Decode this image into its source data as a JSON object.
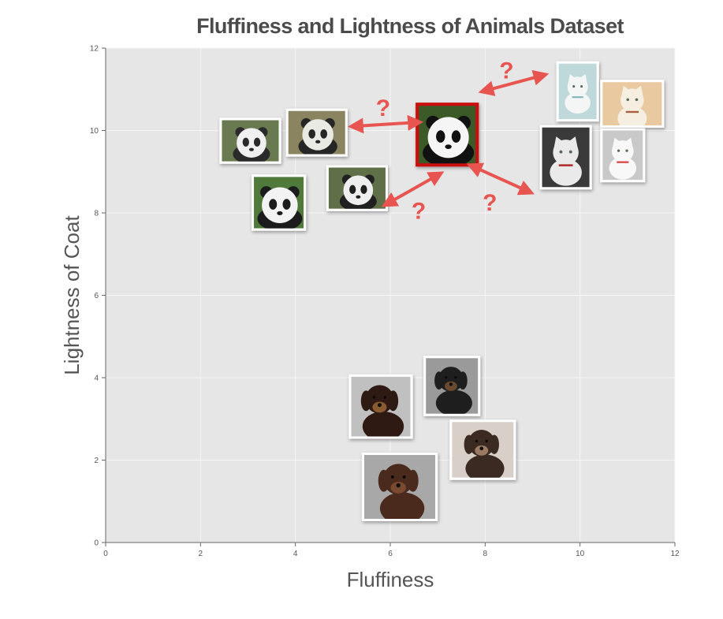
{
  "chart_data": {
    "type": "scatter",
    "title": "Fluffiness and Lightness of Animals Dataset",
    "xlabel": "Fluffiness",
    "ylabel": "Lightness of Coat",
    "xlim": [
      0,
      12
    ],
    "ylim": [
      0,
      12
    ],
    "xticks": [
      "0",
      "2",
      "4",
      "6",
      "8",
      "10",
      "12"
    ],
    "yticks": [
      "0",
      "2",
      "4",
      "6",
      "8",
      "10",
      "12"
    ],
    "grid": true,
    "background": "#e6e6e6",
    "grid_color": "#f6f6f6",
    "annotation_color": "#e85550",
    "highlight_color": "#cc1111",
    "annotation_text": "?",
    "points": [
      {
        "group": "panda",
        "icon": "panda-photo-icon",
        "x": 3.05,
        "y": 9.75,
        "w": 1.2,
        "h": 1.0,
        "colors": [
          "#2a2a2a",
          "#f0f0f0",
          "#6a7a50"
        ]
      },
      {
        "group": "panda",
        "icon": "panda-photo-icon",
        "x": 4.45,
        "y": 9.95,
        "w": 1.2,
        "h": 1.05,
        "colors": [
          "#262626",
          "#eaeae4",
          "#8a8460"
        ]
      },
      {
        "group": "panda",
        "icon": "panda-photo-icon",
        "x": 3.65,
        "y": 8.25,
        "w": 1.05,
        "h": 1.25,
        "colors": [
          "#1c1c1c",
          "#f3f3f3",
          "#4f7a3c"
        ]
      },
      {
        "group": "panda",
        "icon": "panda-photo-icon",
        "x": 5.3,
        "y": 8.6,
        "w": 1.2,
        "h": 1.0,
        "colors": [
          "#202020",
          "#eeeeee",
          "#5f7048"
        ]
      },
      {
        "group": "panda",
        "icon": "panda-photo-icon",
        "x": 7.2,
        "y": 9.9,
        "w": 1.2,
        "h": 1.4,
        "colors": [
          "#111111",
          "#f5f5f5",
          "#3c5a28"
        ],
        "highlight": true
      },
      {
        "group": "cat",
        "icon": "cat-photo-icon",
        "x": 9.95,
        "y": 10.95,
        "w": 0.8,
        "h": 1.35,
        "colors": [
          "#f4f6f6",
          "#bfd8da",
          "#7fb5b8"
        ]
      },
      {
        "group": "cat",
        "icon": "cat-photo-icon",
        "x": 11.1,
        "y": 10.65,
        "w": 1.25,
        "h": 1.05,
        "colors": [
          "#f6eee0",
          "#e8c9a0",
          "#a8603a"
        ]
      },
      {
        "group": "cat",
        "icon": "cat-photo-icon",
        "x": 9.7,
        "y": 9.35,
        "w": 1.0,
        "h": 1.45,
        "colors": [
          "#eaeaea",
          "#3a3a3a",
          "#b03030"
        ]
      },
      {
        "group": "cat",
        "icon": "cat-photo-icon",
        "x": 10.9,
        "y": 9.4,
        "w": 0.85,
        "h": 1.2,
        "colors": [
          "#f8f8f8",
          "#c9c9c9",
          "#d94040"
        ]
      },
      {
        "group": "dog",
        "icon": "dog-photo-icon",
        "x": 5.8,
        "y": 3.3,
        "w": 1.25,
        "h": 1.45,
        "colors": [
          "#2e1a12",
          "#8a5a30",
          "#c0c0c0"
        ]
      },
      {
        "group": "dog",
        "icon": "dog-photo-icon",
        "x": 7.3,
        "y": 3.8,
        "w": 1.1,
        "h": 1.35,
        "colors": [
          "#1e1e1e",
          "#6a4a2e",
          "#9a9a9a"
        ]
      },
      {
        "group": "dog",
        "icon": "dog-photo-icon",
        "x": 7.95,
        "y": 2.25,
        "w": 1.3,
        "h": 1.35,
        "colors": [
          "#3a2a22",
          "#9a7a60",
          "#d8cfc8"
        ]
      },
      {
        "group": "dog",
        "icon": "dog-photo-icon",
        "x": 6.2,
        "y": 1.35,
        "w": 1.5,
        "h": 1.55,
        "colors": [
          "#4a2a1c",
          "#7a4a30",
          "#a8a8a8"
        ]
      }
    ],
    "annotations": [
      {
        "from": [
          5.2,
          10.1
        ],
        "to": [
          6.6,
          10.2
        ],
        "label_at": [
          5.85,
          10.55
        ]
      },
      {
        "from": [
          5.9,
          8.2
        ],
        "to": [
          7.05,
          8.95
        ],
        "label_at": [
          6.6,
          8.05
        ]
      },
      {
        "from": [
          7.95,
          10.95
        ],
        "to": [
          9.25,
          11.35
        ],
        "label_at": [
          8.45,
          11.45
        ]
      },
      {
        "from": [
          7.7,
          9.15
        ],
        "to": [
          8.95,
          8.5
        ],
        "label_at": [
          8.1,
          8.25
        ]
      }
    ]
  }
}
